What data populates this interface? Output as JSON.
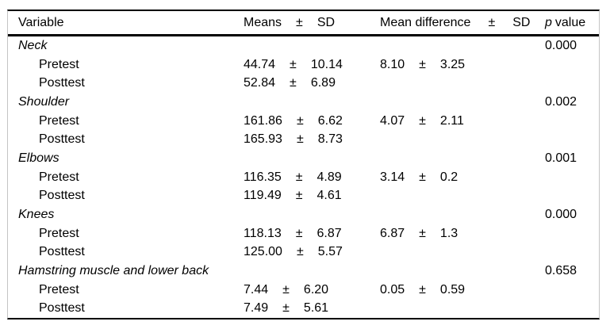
{
  "symbols": {
    "plus_minus": "±"
  },
  "table": {
    "header": {
      "variable": "Variable",
      "means": "Means",
      "means_pm": "±",
      "means_sd": "SD",
      "mean_difference": "Mean difference",
      "diff_pm": "±",
      "diff_sd": "SD",
      "p_italic": "p",
      "p_rest": "value"
    },
    "groups": [
      {
        "name": "Neck",
        "p_value": "0.000",
        "rows": [
          {
            "label": "Pretest",
            "mean": "44.74",
            "pm": "±",
            "sd": "10.14",
            "diff": "8.10",
            "diff_pm": "±",
            "diff_sd": "3.25"
          },
          {
            "label": "Posttest",
            "mean": "52.84",
            "pm": "±",
            "sd": "6.89"
          }
        ]
      },
      {
        "name": "Shoulder",
        "p_value": "0.002",
        "rows": [
          {
            "label": "Pretest",
            "mean": "161.86",
            "pm": "±",
            "sd": "6.62",
            "diff": "4.07",
            "diff_pm": "±",
            "diff_sd": "2.11"
          },
          {
            "label": "Posttest",
            "mean": "165.93",
            "pm": "±",
            "sd": "8.73"
          }
        ]
      },
      {
        "name": "Elbows",
        "p_value": "0.001",
        "rows": [
          {
            "label": "Pretest",
            "mean": "116.35",
            "pm": "±",
            "sd": "4.89",
            "diff": "3.14",
            "diff_pm": "±",
            "diff_sd": "0.2"
          },
          {
            "label": "Posttest",
            "mean": "119.49",
            "pm": "±",
            "sd": "4.61"
          }
        ]
      },
      {
        "name": "Knees",
        "p_value": "0.000",
        "rows": [
          {
            "label": "Pretest",
            "mean": "118.13",
            "pm": "±",
            "sd": "6.87",
            "diff": "6.87",
            "diff_pm": "±",
            "diff_sd": "1.3"
          },
          {
            "label": "Posttest",
            "mean": "125.00",
            "pm": "±",
            "sd": "5.57"
          }
        ]
      },
      {
        "name": "Hamstring muscle and lower back",
        "p_value": "0.658",
        "rows": [
          {
            "label": "Pretest",
            "mean": "7.44",
            "pm": "±",
            "sd": "6.20",
            "diff": "0.05",
            "diff_pm": "±",
            "diff_sd": "0.59"
          },
          {
            "label": "Posttest",
            "mean": "7.49",
            "pm": "±",
            "sd": "5.61"
          }
        ]
      }
    ]
  },
  "colors": {
    "rule": "#000000",
    "side_border": "#c4c4c4",
    "background": "#ffffff",
    "text": "#000000"
  }
}
